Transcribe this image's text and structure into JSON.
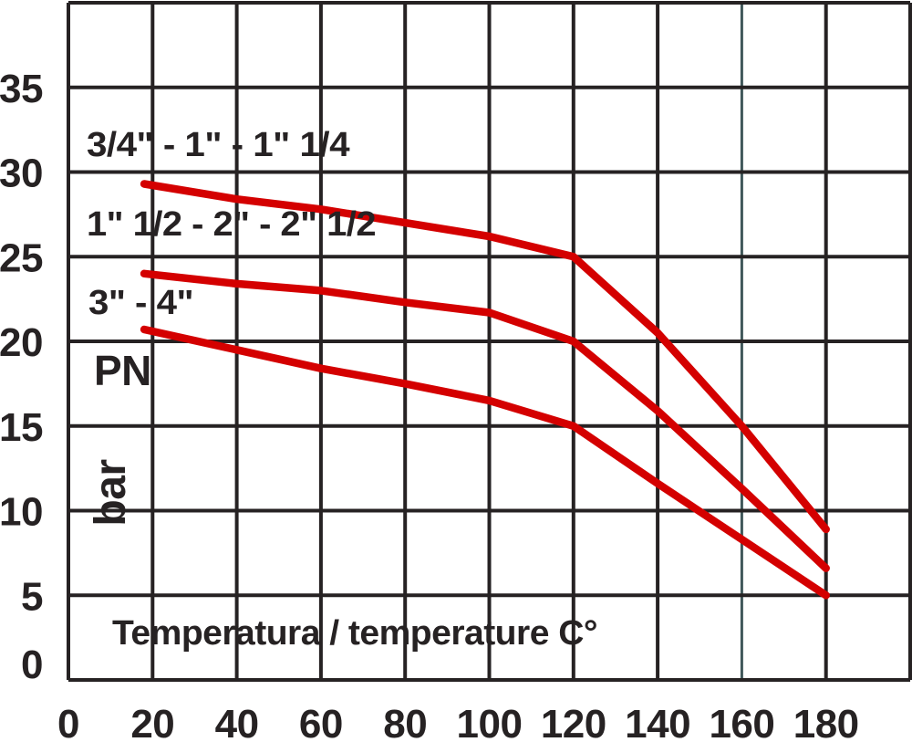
{
  "chart_data": {
    "type": "line",
    "title": "",
    "xlabel": "Temperatura / temperature C°",
    "ylabel": "PN",
    "ylabel_unit": "bar",
    "xlim": [
      0,
      200
    ],
    "ylim": [
      0,
      40
    ],
    "x_grid_step": 20,
    "y_grid_step": 5,
    "grid": true,
    "accent_gridline_x": 160,
    "x_ticks": [
      0,
      20,
      40,
      60,
      80,
      100,
      120,
      140,
      160,
      180
    ],
    "y_ticks": [
      0,
      5,
      10,
      15,
      20,
      25,
      30,
      35
    ],
    "series": [
      {
        "name": "3/4\" - 1\" - 1\" 1/4",
        "color": "#d40000",
        "points": [
          [
            18,
            29.3
          ],
          [
            40,
            28.4
          ],
          [
            60,
            27.8
          ],
          [
            80,
            27.0
          ],
          [
            100,
            26.2
          ],
          [
            120,
            25.0
          ],
          [
            140,
            20.5
          ],
          [
            160,
            15.0
          ],
          [
            180,
            8.9
          ]
        ]
      },
      {
        "name": "1\" 1/2 - 2\" - 2\" 1/2",
        "color": "#d40000",
        "points": [
          [
            18,
            24.0
          ],
          [
            40,
            23.4
          ],
          [
            60,
            23.0
          ],
          [
            80,
            22.3
          ],
          [
            100,
            21.7
          ],
          [
            120,
            20.0
          ],
          [
            140,
            15.9
          ],
          [
            160,
            11.3
          ],
          [
            180,
            6.6
          ]
        ]
      },
      {
        "name": "3\" - 4\"",
        "color": "#d40000",
        "points": [
          [
            18,
            20.7
          ],
          [
            40,
            19.5
          ],
          [
            60,
            18.4
          ],
          [
            80,
            17.5
          ],
          [
            100,
            16.5
          ],
          [
            120,
            15.0
          ],
          [
            140,
            11.6
          ],
          [
            160,
            8.3
          ],
          [
            180,
            5.0
          ]
        ]
      }
    ]
  },
  "colors": {
    "curve_red": "#d40000",
    "grid_dark": "#262223",
    "grid_accent_teal": "#40585a",
    "text": "#262223",
    "background": "#ffffff"
  }
}
